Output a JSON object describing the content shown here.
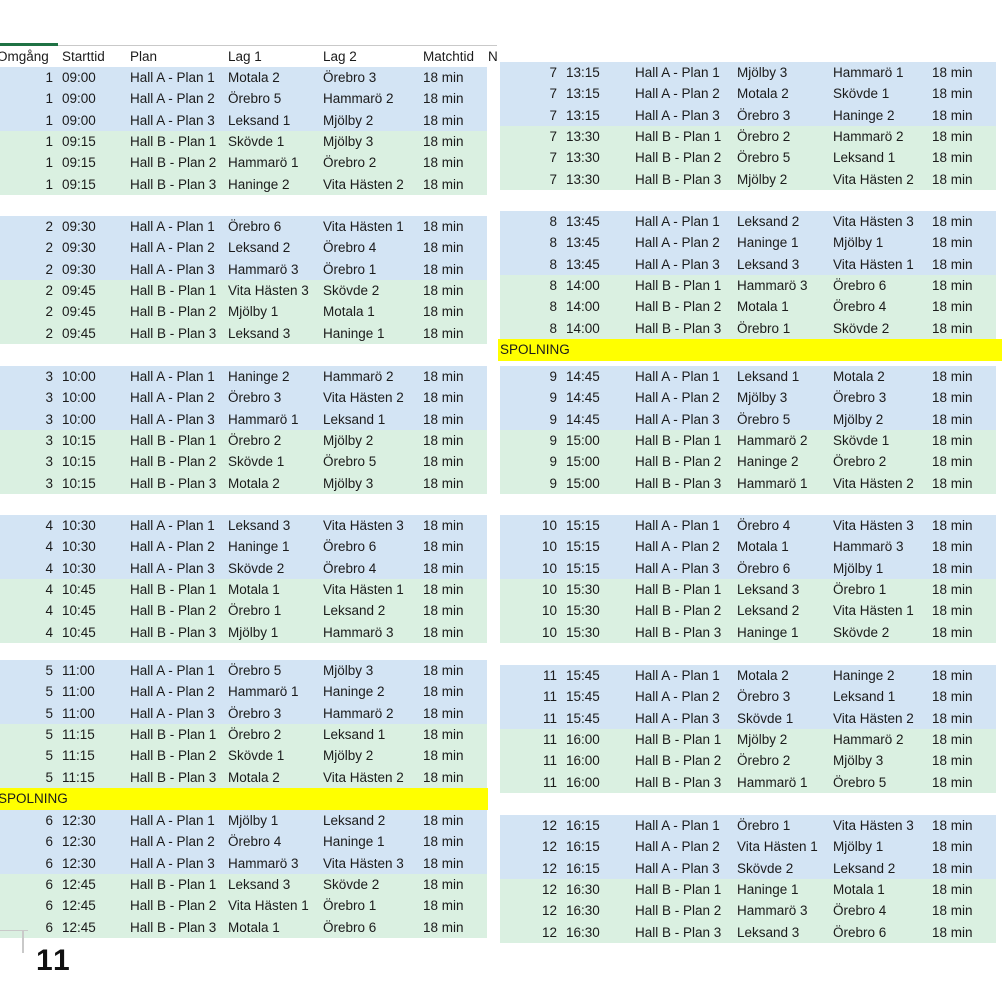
{
  "colors": {
    "row_blue": "#D3E4F4",
    "row_green": "#DAF0E1",
    "row_yellow": "#FFFF00",
    "green_accent": "#1F7244",
    "grid_line": "#C9C9C9",
    "text": "#1B1B1B"
  },
  "header": {
    "columns": [
      "Omgång",
      "Starttid",
      "Plan",
      "Lag 1",
      "Lag 2",
      "Matchtid",
      "N"
    ]
  },
  "spolning_label": "SPOLNING",
  "page_number": "11",
  "left_rounds": [
    [
      [
        "1",
        "09:00",
        "Hall A - Plan 1",
        "Motala 2",
        "Örebro 3",
        "18 min"
      ],
      [
        "1",
        "09:00",
        "Hall A - Plan 2",
        "Örebro 5",
        "Hammarö 2",
        "18 min"
      ],
      [
        "1",
        "09:00",
        "Hall A - Plan 3",
        "Leksand 1",
        "Mjölby 2",
        "18 min"
      ],
      [
        "1",
        "09:15",
        "Hall B - Plan 1",
        "Skövde 1",
        "Mjölby 3",
        "18 min"
      ],
      [
        "1",
        "09:15",
        "Hall B - Plan 2",
        "Hammarö 1",
        "Örebro 2",
        "18 min"
      ],
      [
        "1",
        "09:15",
        "Hall B - Plan 3",
        "Haninge 2",
        "Vita Hästen 2",
        "18 min"
      ]
    ],
    [
      [
        "2",
        "09:30",
        "Hall A - Plan 1",
        "Örebro 6",
        "Vita Hästen 1",
        "18 min"
      ],
      [
        "2",
        "09:30",
        "Hall A - Plan 2",
        "Leksand 2",
        "Örebro 4",
        "18 min"
      ],
      [
        "2",
        "09:30",
        "Hall A - Plan 3",
        "Hammarö 3",
        "Örebro 1",
        "18 min"
      ],
      [
        "2",
        "09:45",
        "Hall B - Plan 1",
        "Vita Hästen 3",
        "Skövde 2",
        "18 min"
      ],
      [
        "2",
        "09:45",
        "Hall B - Plan 2",
        "Mjölby 1",
        "Motala 1",
        "18 min"
      ],
      [
        "2",
        "09:45",
        "Hall B - Plan 3",
        "Leksand 3",
        "Haninge 1",
        "18 min"
      ]
    ],
    [
      [
        "3",
        "10:00",
        "Hall A - Plan 1",
        "Haninge 2",
        "Hammarö 2",
        "18 min"
      ],
      [
        "3",
        "10:00",
        "Hall A - Plan 2",
        "Örebro 3",
        "Vita Hästen 2",
        "18 min"
      ],
      [
        "3",
        "10:00",
        "Hall A - Plan 3",
        "Hammarö 1",
        "Leksand 1",
        "18 min"
      ],
      [
        "3",
        "10:15",
        "Hall B - Plan 1",
        "Örebro 2",
        "Mjölby 2",
        "18 min"
      ],
      [
        "3",
        "10:15",
        "Hall B - Plan 2",
        "Skövde 1",
        "Örebro 5",
        "18 min"
      ],
      [
        "3",
        "10:15",
        "Hall B - Plan 3",
        "Motala 2",
        "Mjölby 3",
        "18 min"
      ]
    ],
    [
      [
        "4",
        "10:30",
        "Hall A - Plan 1",
        "Leksand 3",
        "Vita Hästen 3",
        "18 min"
      ],
      [
        "4",
        "10:30",
        "Hall A - Plan 2",
        "Haninge 1",
        "Örebro 6",
        "18 min"
      ],
      [
        "4",
        "10:30",
        "Hall A - Plan 3",
        "Skövde 2",
        "Örebro 4",
        "18 min"
      ],
      [
        "4",
        "10:45",
        "Hall B - Plan 1",
        "Motala 1",
        "Vita Hästen 1",
        "18 min"
      ],
      [
        "4",
        "10:45",
        "Hall B - Plan 2",
        "Örebro 1",
        "Leksand 2",
        "18 min"
      ],
      [
        "4",
        "10:45",
        "Hall B - Plan 3",
        "Mjölby 1",
        "Hammarö 3",
        "18 min"
      ]
    ],
    [
      [
        "5",
        "11:00",
        "Hall A - Plan 1",
        "Örebro 5",
        "Mjölby 3",
        "18 min"
      ],
      [
        "5",
        "11:00",
        "Hall A - Plan 2",
        "Hammarö 1",
        "Haninge 2",
        "18 min"
      ],
      [
        "5",
        "11:00",
        "Hall A - Plan 3",
        "Örebro 3",
        "Hammarö 2",
        "18 min"
      ],
      [
        "5",
        "11:15",
        "Hall B - Plan 1",
        "Örebro 2",
        "Leksand 1",
        "18 min"
      ],
      [
        "5",
        "11:15",
        "Hall B - Plan 2",
        "Skövde 1",
        "Mjölby 2",
        "18 min"
      ],
      [
        "5",
        "11:15",
        "Hall B - Plan 3",
        "Motala 2",
        "Vita Hästen 2",
        "18 min"
      ]
    ],
    [
      [
        "6",
        "12:30",
        "Hall A - Plan 1",
        "Mjölby 1",
        "Leksand 2",
        "18 min"
      ],
      [
        "6",
        "12:30",
        "Hall A - Plan 2",
        "Örebro 4",
        "Haninge 1",
        "18 min"
      ],
      [
        "6",
        "12:30",
        "Hall A - Plan 3",
        "Hammarö 3",
        "Vita Hästen 3",
        "18 min"
      ],
      [
        "6",
        "12:45",
        "Hall B - Plan 1",
        "Leksand 3",
        "Skövde 2",
        "18 min"
      ],
      [
        "6",
        "12:45",
        "Hall B - Plan 2",
        "Vita Hästen 1",
        "Örebro 1",
        "18 min"
      ],
      [
        "6",
        "12:45",
        "Hall B - Plan 3",
        "Motala 1",
        "Örebro 6",
        "18 min"
      ]
    ]
  ],
  "right_rounds": [
    [
      [
        "7",
        "13:15",
        "Hall A - Plan 1",
        "Mjölby 3",
        "Hammarö 1",
        "18 min"
      ],
      [
        "7",
        "13:15",
        "Hall A - Plan 2",
        "Motala 2",
        "Skövde 1",
        "18 min"
      ],
      [
        "7",
        "13:15",
        "Hall A - Plan 3",
        "Örebro 3",
        "Haninge 2",
        "18 min"
      ],
      [
        "7",
        "13:30",
        "Hall B - Plan 1",
        "Örebro 2",
        "Hammarö 2",
        "18 min"
      ],
      [
        "7",
        "13:30",
        "Hall B - Plan 2",
        "Örebro 5",
        "Leksand 1",
        "18 min"
      ],
      [
        "7",
        "13:30",
        "Hall B - Plan 3",
        "Mjölby 2",
        "Vita Hästen 2",
        "18 min"
      ]
    ],
    [
      [
        "8",
        "13:45",
        "Hall A - Plan 1",
        "Leksand 2",
        "Vita Hästen 3",
        "18 min"
      ],
      [
        "8",
        "13:45",
        "Hall A - Plan 2",
        "Haninge 1",
        "Mjölby 1",
        "18 min"
      ],
      [
        "8",
        "13:45",
        "Hall A - Plan 3",
        "Leksand 3",
        "Vita Hästen 1",
        "18 min"
      ],
      [
        "8",
        "14:00",
        "Hall B - Plan 1",
        "Hammarö 3",
        "Örebro 6",
        "18 min"
      ],
      [
        "8",
        "14:00",
        "Hall B - Plan 2",
        "Motala 1",
        "Örebro 4",
        "18 min"
      ],
      [
        "8",
        "14:00",
        "Hall B - Plan 3",
        "Örebro 1",
        "Skövde 2",
        "18 min"
      ]
    ],
    [
      [
        "9",
        "14:45",
        "Hall A - Plan 1",
        "Leksand 1",
        "Motala 2",
        "18 min"
      ],
      [
        "9",
        "14:45",
        "Hall A - Plan 2",
        "Mjölby 3",
        "Örebro 3",
        "18 min"
      ],
      [
        "9",
        "14:45",
        "Hall A - Plan 3",
        "Örebro 5",
        "Mjölby 2",
        "18 min"
      ],
      [
        "9",
        "15:00",
        "Hall B - Plan 1",
        "Hammarö 2",
        "Skövde 1",
        "18 min"
      ],
      [
        "9",
        "15:00",
        "Hall B - Plan 2",
        "Haninge 2",
        "Örebro 2",
        "18 min"
      ],
      [
        "9",
        "15:00",
        "Hall B - Plan 3",
        "Hammarö 1",
        "Vita Hästen 2",
        "18 min"
      ]
    ],
    [
      [
        "10",
        "15:15",
        "Hall A - Plan 1",
        "Örebro 4",
        "Vita Hästen 3",
        "18 min"
      ],
      [
        "10",
        "15:15",
        "Hall A - Plan 2",
        "Motala 1",
        "Hammarö 3",
        "18 min"
      ],
      [
        "10",
        "15:15",
        "Hall A - Plan 3",
        "Örebro 6",
        "Mjölby 1",
        "18 min"
      ],
      [
        "10",
        "15:30",
        "Hall B - Plan 1",
        "Leksand 3",
        "Örebro 1",
        "18 min"
      ],
      [
        "10",
        "15:30",
        "Hall B - Plan 2",
        "Leksand 2",
        "Vita Hästen 1",
        "18 min"
      ],
      [
        "10",
        "15:30",
        "Hall B - Plan 3",
        "Haninge 1",
        "Skövde 2",
        "18 min"
      ]
    ],
    [
      [
        "11",
        "15:45",
        "Hall A - Plan 1",
        "Motala 2",
        "Haninge 2",
        "18 min"
      ],
      [
        "11",
        "15:45",
        "Hall A - Plan 2",
        "Örebro 3",
        "Leksand 1",
        "18 min"
      ],
      [
        "11",
        "15:45",
        "Hall A - Plan 3",
        "Skövde 1",
        "Vita Hästen 2",
        "18 min"
      ],
      [
        "11",
        "16:00",
        "Hall B - Plan 1",
        "Mjölby 2",
        "Hammarö 2",
        "18 min"
      ],
      [
        "11",
        "16:00",
        "Hall B - Plan 2",
        "Örebro 2",
        "Mjölby 3",
        "18 min"
      ],
      [
        "11",
        "16:00",
        "Hall B - Plan 3",
        "Hammarö 1",
        "Örebro 5",
        "18 min"
      ]
    ],
    [
      [
        "12",
        "16:15",
        "Hall A - Plan 1",
        "Örebro 1",
        "Vita Hästen 3",
        "18 min"
      ],
      [
        "12",
        "16:15",
        "Hall A - Plan 2",
        "Vita Hästen 1",
        "Mjölby 1",
        "18 min"
      ],
      [
        "12",
        "16:15",
        "Hall A - Plan 3",
        "Skövde 2",
        "Leksand 2",
        "18 min"
      ],
      [
        "12",
        "16:30",
        "Hall B - Plan 1",
        "Haninge 1",
        "Motala 1",
        "18 min"
      ],
      [
        "12",
        "16:30",
        "Hall B - Plan 2",
        "Hammarö 3",
        "Örebro 4",
        "18 min"
      ],
      [
        "12",
        "16:30",
        "Hall B - Plan 3",
        "Leksand 3",
        "Örebro 6",
        "18 min"
      ]
    ]
  ]
}
